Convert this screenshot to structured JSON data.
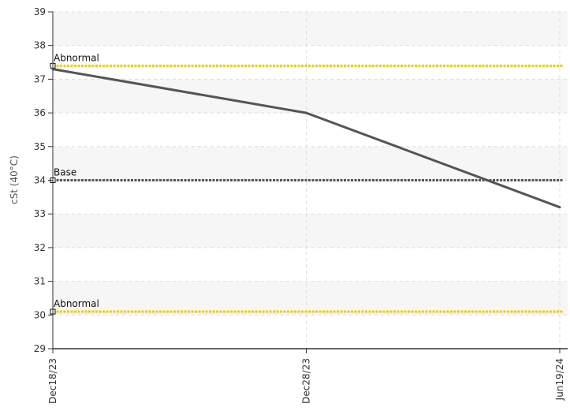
{
  "chart_data": {
    "type": "line",
    "ylabel": "cSt (40°C)",
    "ylim": [
      29,
      39
    ],
    "yticks": [
      29,
      30,
      31,
      32,
      33,
      34,
      35,
      36,
      37,
      38,
      39
    ],
    "categories": [
      "Dec18/23",
      "Dec28/23",
      "Jun19/24"
    ],
    "series": [
      {
        "values": [
          37.3,
          36.0,
          33.2
        ],
        "color": "#555555"
      }
    ],
    "reference_lines": [
      {
        "label": "Abnormal",
        "value": 37.4,
        "color": "#f5c800"
      },
      {
        "label": "Base",
        "value": 34.0,
        "color": "#555555"
      },
      {
        "label": "Abnormal",
        "value": 30.1,
        "color": "#f5c800"
      }
    ],
    "grid": true,
    "background_bands": true
  }
}
